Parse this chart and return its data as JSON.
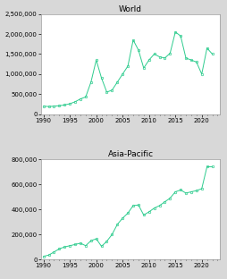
{
  "world_years": [
    1990,
    1991,
    1992,
    1993,
    1994,
    1995,
    1996,
    1997,
    1998,
    1999,
    2000,
    2001,
    2002,
    2003,
    2004,
    2005,
    2006,
    2007,
    2008,
    2009,
    2010,
    2011,
    2012,
    2013,
    2014,
    2015,
    2016,
    2017,
    2018,
    2019,
    2020,
    2021,
    2022
  ],
  "world_values": [
    200000,
    190000,
    200000,
    210000,
    230000,
    260000,
    310000,
    380000,
    430000,
    800000,
    1350000,
    900000,
    550000,
    600000,
    800000,
    1000000,
    1200000,
    1850000,
    1600000,
    1150000,
    1350000,
    1500000,
    1430000,
    1400000,
    1520000,
    2050000,
    1950000,
    1400000,
    1350000,
    1300000,
    1000000,
    1650000,
    1500000
  ],
  "asiapac_years": [
    1990,
    1991,
    1992,
    1993,
    1994,
    1995,
    1996,
    1997,
    1998,
    1999,
    2000,
    2001,
    2002,
    2003,
    2004,
    2005,
    2006,
    2007,
    2008,
    2009,
    2010,
    2011,
    2012,
    2013,
    2014,
    2015,
    2016,
    2017,
    2018,
    2019,
    2020,
    2021,
    2022
  ],
  "asiapac_values": [
    25000,
    35000,
    60000,
    85000,
    100000,
    110000,
    120000,
    130000,
    110000,
    150000,
    165000,
    105000,
    145000,
    200000,
    280000,
    330000,
    370000,
    430000,
    435000,
    355000,
    380000,
    410000,
    430000,
    460000,
    490000,
    540000,
    555000,
    530000,
    540000,
    550000,
    565000,
    740000,
    740000
  ],
  "line_color": "#2ecc8e",
  "marker_color": "#2ecc8e",
  "bg_color": "#d8d8d8",
  "plot_bg": "#ffffff",
  "title_world": "World",
  "title_asiapac": "Asia-Pacific",
  "world_ylim": [
    0,
    2500000
  ],
  "asiapac_ylim": [
    0,
    800000
  ],
  "xlim": [
    1989.5,
    2023.5
  ],
  "title_fontsize": 6.5,
  "tick_fontsize": 5.0,
  "world_yticks": [
    0,
    500000,
    1000000,
    1500000,
    2000000,
    2500000
  ],
  "asiapac_yticks": [
    0,
    200000,
    400000,
    600000,
    800000
  ]
}
